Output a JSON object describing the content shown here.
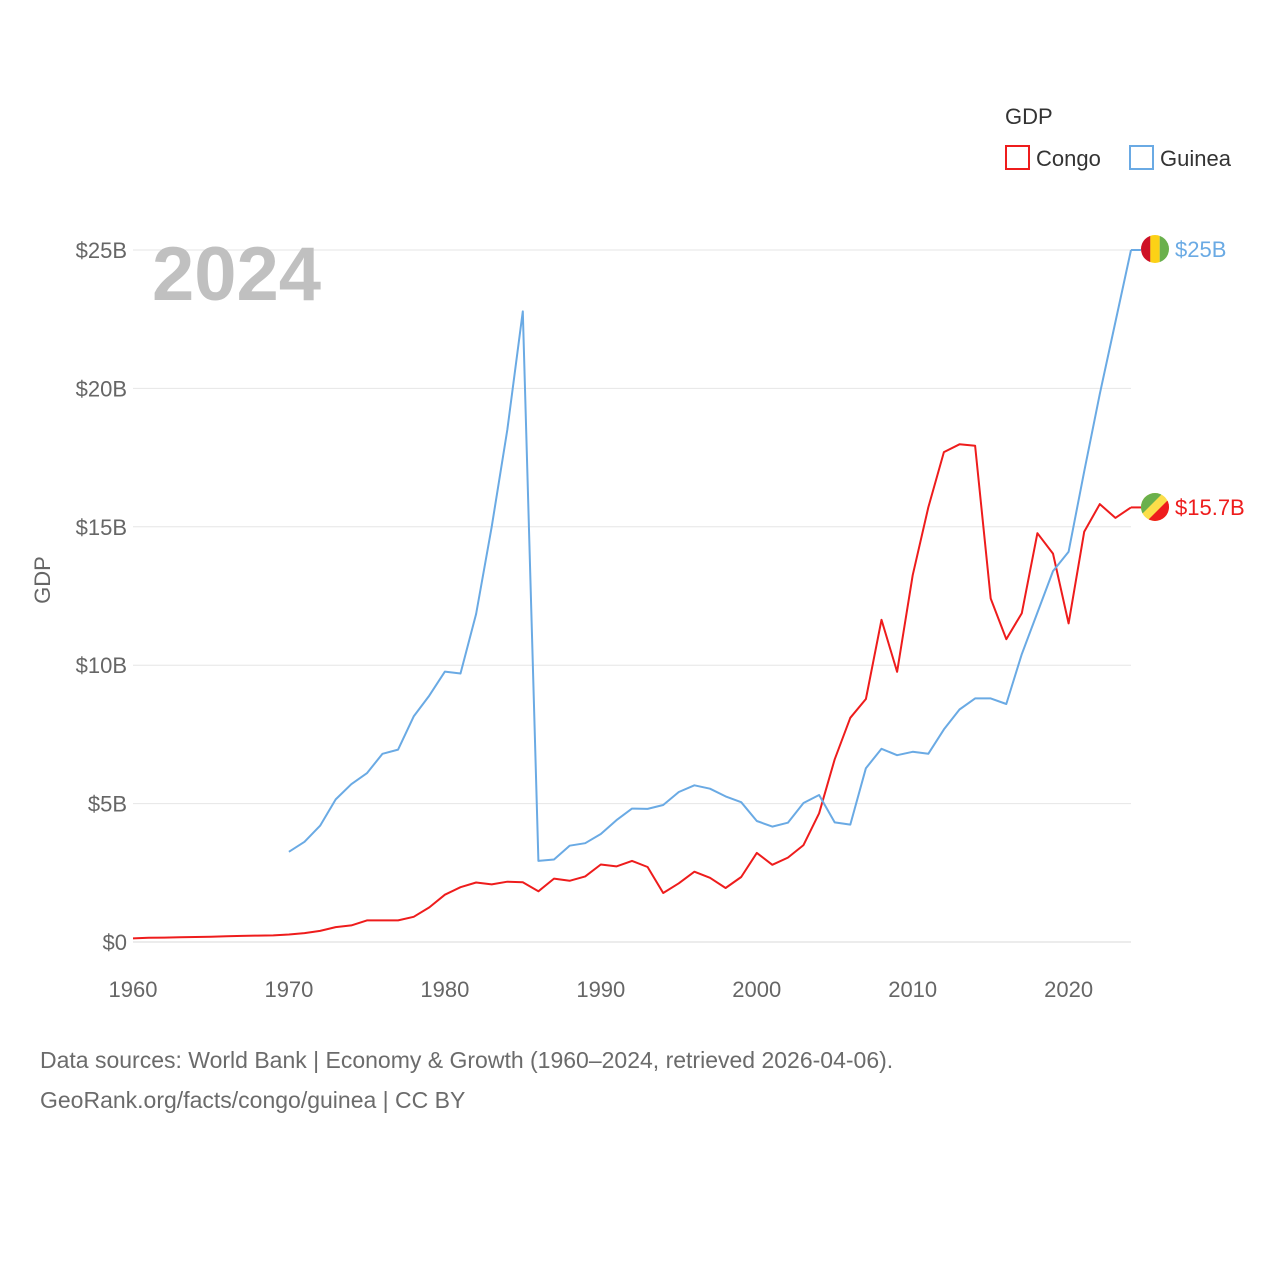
{
  "chart_data": {
    "type": "line",
    "title": "",
    "ylabel": "GDP",
    "xlabel": "",
    "xlim": [
      1960,
      2024
    ],
    "ylim": [
      0,
      25
    ],
    "x_ticks": [
      1960,
      1970,
      1980,
      1990,
      2000,
      2010,
      2020
    ],
    "x_tick_labels": [
      "1960",
      "1970",
      "1980",
      "1990",
      "2000",
      "2010",
      "2020"
    ],
    "y_ticks": [
      0,
      5,
      10,
      15,
      20,
      25
    ],
    "y_tick_labels": [
      "$0",
      "$5B",
      "$10B",
      "$15B",
      "$20B",
      "$25B"
    ],
    "year_label": "2024",
    "legend": {
      "title": "GDP",
      "position": "top-right"
    },
    "series": [
      {
        "name": "Congo",
        "color": "#ee1c1c",
        "end_label": "$15.7B",
        "x": [
          1960,
          1961,
          1962,
          1963,
          1964,
          1965,
          1966,
          1967,
          1968,
          1969,
          1970,
          1971,
          1972,
          1973,
          1974,
          1975,
          1976,
          1977,
          1978,
          1979,
          1980,
          1981,
          1982,
          1983,
          1984,
          1985,
          1986,
          1987,
          1988,
          1989,
          1990,
          1991,
          1992,
          1993,
          1994,
          1995,
          1996,
          1997,
          1998,
          1999,
          2000,
          2001,
          2002,
          2003,
          2004,
          2005,
          2006,
          2007,
          2008,
          2009,
          2010,
          2011,
          2012,
          2013,
          2014,
          2015,
          2016,
          2017,
          2018,
          2019,
          2020,
          2021,
          2022,
          2023,
          2024
        ],
        "values": [
          0.13,
          0.15,
          0.16,
          0.17,
          0.18,
          0.19,
          0.21,
          0.22,
          0.23,
          0.24,
          0.27,
          0.32,
          0.4,
          0.54,
          0.6,
          0.78,
          0.78,
          0.78,
          0.91,
          1.25,
          1.71,
          1.98,
          2.15,
          2.08,
          2.18,
          2.16,
          1.83,
          2.29,
          2.21,
          2.37,
          2.8,
          2.73,
          2.93,
          2.71,
          1.77,
          2.12,
          2.54,
          2.32,
          1.95,
          2.35,
          3.22,
          2.79,
          3.05,
          3.5,
          4.65,
          6.6,
          8.1,
          8.78,
          11.64,
          9.76,
          13.25,
          15.7,
          17.7,
          17.98,
          17.93,
          12.41,
          10.94,
          11.88,
          14.77,
          14.03,
          11.51,
          14.82,
          15.82,
          15.32,
          15.7
        ]
      },
      {
        "name": "Guinea",
        "color": "#6aaae4",
        "end_label": "$25B",
        "x": [
          1970,
          1971,
          1972,
          1973,
          1974,
          1975,
          1976,
          1977,
          1978,
          1979,
          1980,
          1981,
          1982,
          1983,
          1984,
          1985,
          1986,
          1987,
          1988,
          1989,
          1990,
          1991,
          1992,
          1993,
          1994,
          1995,
          1996,
          1997,
          1998,
          1999,
          2000,
          2001,
          2002,
          2003,
          2004,
          2005,
          2006,
          2007,
          2008,
          2009,
          2010,
          2011,
          2012,
          2013,
          2014,
          2015,
          2016,
          2017,
          2018,
          2019,
          2020,
          2021,
          2022,
          2023,
          2024
        ],
        "values": [
          3.26,
          3.62,
          4.2,
          5.15,
          5.7,
          6.1,
          6.8,
          6.95,
          8.15,
          8.9,
          9.77,
          9.7,
          11.85,
          15.0,
          18.5,
          22.78,
          2.93,
          2.98,
          3.48,
          3.57,
          3.9,
          4.4,
          4.82,
          4.81,
          4.95,
          5.42,
          5.66,
          5.54,
          5.26,
          5.05,
          4.37,
          4.17,
          4.31,
          5.02,
          5.31,
          4.32,
          4.24,
          6.28,
          6.98,
          6.75,
          6.87,
          6.8,
          7.68,
          8.4,
          8.8,
          8.8,
          8.6,
          10.4,
          11.9,
          13.4,
          14.1,
          17.0,
          19.8,
          22.4,
          25.0
        ]
      }
    ]
  }
}
